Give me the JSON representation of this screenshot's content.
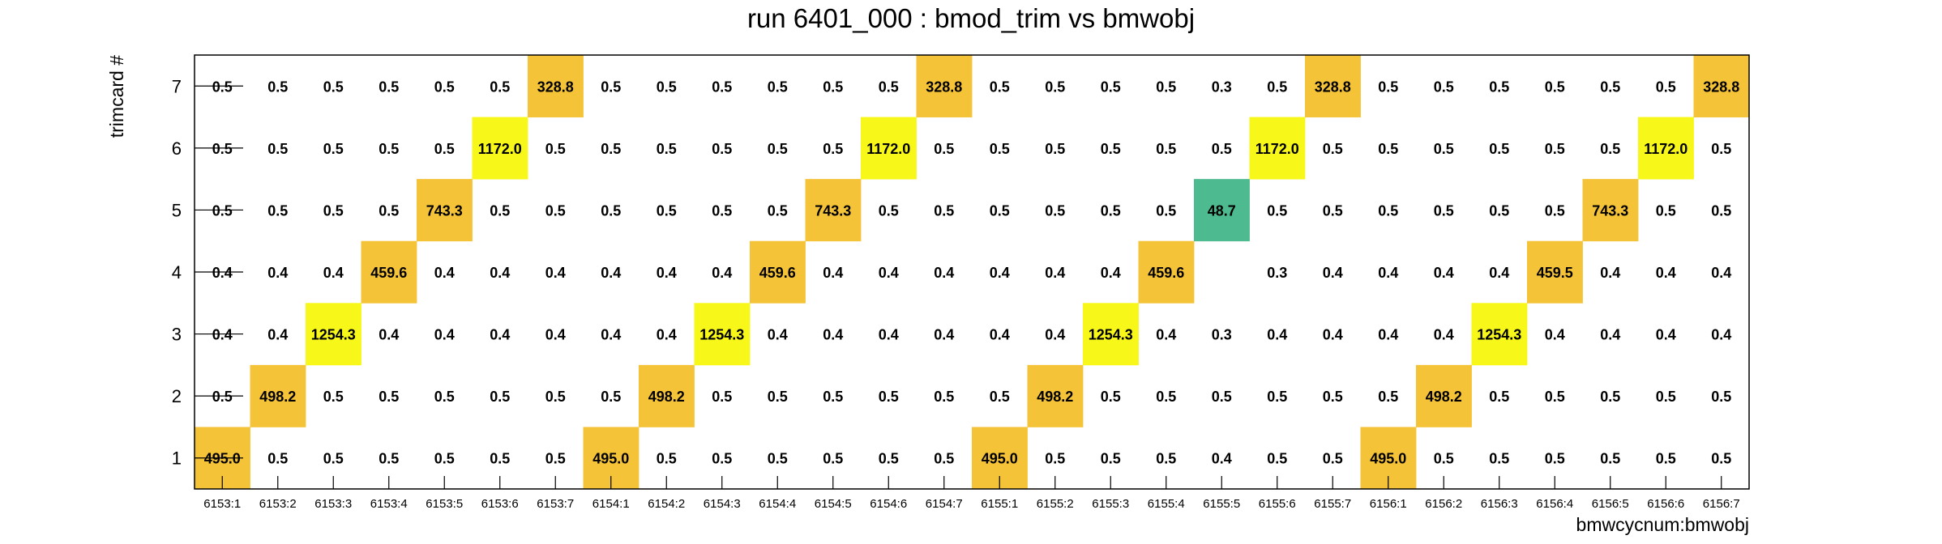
{
  "chart_data": {
    "type": "heatmap",
    "title": "run 6401_000 : bmod_trim vs bmwobj",
    "xlabel": "bmwcycnum:bmwobj",
    "ylabel": "trimcard #",
    "x_categories": [
      "6153:1",
      "6153:2",
      "6153:3",
      "6153:4",
      "6153:5",
      "6153:6",
      "6153:7",
      "6154:1",
      "6154:2",
      "6154:3",
      "6154:4",
      "6154:5",
      "6154:6",
      "6154:7",
      "6155:1",
      "6155:2",
      "6155:3",
      "6155:4",
      "6155:5",
      "6155:6",
      "6155:7",
      "6156:1",
      "6156:2",
      "6156:3",
      "6156:4",
      "6156:5",
      "6156:6",
      "6156:7"
    ],
    "y_categories": [
      "1",
      "2",
      "3",
      "4",
      "5",
      "6",
      "7"
    ],
    "values": [
      [
        "495.0",
        "0.5",
        "0.5",
        "0.5",
        "0.5",
        "0.5",
        "0.5",
        "495.0",
        "0.5",
        "0.5",
        "0.5",
        "0.5",
        "0.5",
        "0.5",
        "495.0",
        "0.5",
        "0.5",
        "0.5",
        "0.4",
        "0.5",
        "0.5",
        "495.0",
        "0.5",
        "0.5",
        "0.5",
        "0.5",
        "0.5",
        "0.5"
      ],
      [
        "0.5",
        "498.2",
        "0.5",
        "0.5",
        "0.5",
        "0.5",
        "0.5",
        "0.5",
        "498.2",
        "0.5",
        "0.5",
        "0.5",
        "0.5",
        "0.5",
        "0.5",
        "498.2",
        "0.5",
        "0.5",
        "0.5",
        "0.5",
        "0.5",
        "0.5",
        "498.2",
        "0.5",
        "0.5",
        "0.5",
        "0.5",
        "0.5"
      ],
      [
        "0.4",
        "0.4",
        "1254.3",
        "0.4",
        "0.4",
        "0.4",
        "0.4",
        "0.4",
        "0.4",
        "1254.3",
        "0.4",
        "0.4",
        "0.4",
        "0.4",
        "0.4",
        "0.4",
        "1254.3",
        "0.4",
        "0.3",
        "0.4",
        "0.4",
        "0.4",
        "0.4",
        "1254.3",
        "0.4",
        "0.4",
        "0.4",
        "0.4"
      ],
      [
        "0.4",
        "0.4",
        "0.4",
        "459.6",
        "0.4",
        "0.4",
        "0.4",
        "0.4",
        "0.4",
        "0.4",
        "459.6",
        "0.4",
        "0.4",
        "0.4",
        "0.4",
        "0.4",
        "0.4",
        "459.6",
        null,
        "0.3",
        "0.4",
        "0.4",
        "0.4",
        "0.4",
        "459.5",
        "0.4",
        "0.4",
        "0.4"
      ],
      [
        "0.5",
        "0.5",
        "0.5",
        "0.5",
        "743.3",
        "0.5",
        "0.5",
        "0.5",
        "0.5",
        "0.5",
        "0.5",
        "743.3",
        "0.5",
        "0.5",
        "0.5",
        "0.5",
        "0.5",
        "0.5",
        "48.7",
        "0.5",
        "0.5",
        "0.5",
        "0.5",
        "0.5",
        "0.5",
        "743.3",
        "0.5",
        "0.5"
      ],
      [
        "0.5",
        "0.5",
        "0.5",
        "0.5",
        "0.5",
        "1172.0",
        "0.5",
        "0.5",
        "0.5",
        "0.5",
        "0.5",
        "0.5",
        "1172.0",
        "0.5",
        "0.5",
        "0.5",
        "0.5",
        "0.5",
        "0.5",
        "1172.0",
        "0.5",
        "0.5",
        "0.5",
        "0.5",
        "0.5",
        "0.5",
        "1172.0",
        "0.5"
      ],
      [
        "0.5",
        "0.5",
        "0.5",
        "0.5",
        "0.5",
        "0.5",
        "328.8",
        "0.5",
        "0.5",
        "0.5",
        "0.5",
        "0.5",
        "0.5",
        "328.8",
        "0.5",
        "0.5",
        "0.5",
        "0.5",
        "0.3",
        "0.5",
        "328.8",
        "0.5",
        "0.5",
        "0.5",
        "0.5",
        "0.5",
        "0.5",
        "328.8"
      ]
    ],
    "colors": {
      "high": "#f7f71a",
      "mid": "#f5c338",
      "low": "#4eba8f",
      "frame": "#000000"
    },
    "grid": false,
    "legend": "none"
  }
}
